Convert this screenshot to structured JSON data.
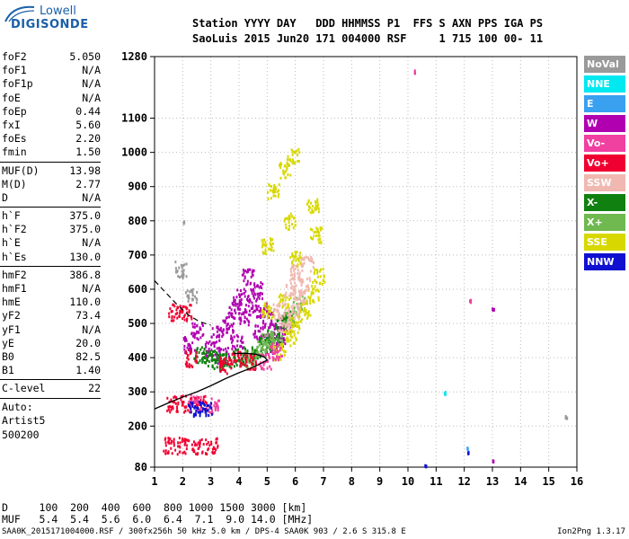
{
  "logo": {
    "line1": "Lowell",
    "line2": "DIGISONDE"
  },
  "header": {
    "columns_line": "Station YYYY DAY   DDD HHMMSS P1  FFS S AXN PPS IGA PS",
    "values_line": "SaoLuis 2015 Jun20 171 004000 RSF     1 715 100 00- 11"
  },
  "params_group1": [
    {
      "name": "foF2",
      "value": "5.050"
    },
    {
      "name": "foF1",
      "value": "N/A"
    },
    {
      "name": "foF1p",
      "value": "N/A"
    },
    {
      "name": "foE",
      "value": "N/A"
    },
    {
      "name": "foEp",
      "value": "0.44"
    },
    {
      "name": "fxI",
      "value": "5.60"
    },
    {
      "name": "foEs",
      "value": "2.20"
    },
    {
      "name": "fmin",
      "value": "1.50"
    }
  ],
  "params_group2": [
    {
      "name": "MUF(D)",
      "value": "13.98"
    },
    {
      "name": "M(D)",
      "value": "2.77"
    },
    {
      "name": "D",
      "value": "N/A"
    }
  ],
  "params_group3": [
    {
      "name": "h`F",
      "value": "375.0"
    },
    {
      "name": "h`F2",
      "value": "375.0"
    },
    {
      "name": "h`E",
      "value": "N/A"
    },
    {
      "name": "h`Es",
      "value": "130.0"
    }
  ],
  "params_group4": [
    {
      "name": "hmF2",
      "value": "386.8"
    },
    {
      "name": "hmF1",
      "value": "N/A"
    },
    {
      "name": "hmE",
      "value": "110.0"
    },
    {
      "name": "yF2",
      "value": "73.4"
    },
    {
      "name": "yF1",
      "value": "N/A"
    },
    {
      "name": "yE",
      "value": "20.0"
    },
    {
      "name": "B0",
      "value": "82.5"
    },
    {
      "name": "B1",
      "value": "1.40"
    }
  ],
  "params_group5": [
    {
      "name": "C-level",
      "value": "22"
    }
  ],
  "artist": {
    "line1": "Auto:",
    "line2": "Artist5",
    "line3": "500200"
  },
  "legend": [
    {
      "label": "NoVal",
      "color": "#9a9a9a"
    },
    {
      "label": "NNE",
      "color": "#00e8f0"
    },
    {
      "label": "E",
      "color": "#3aa0f0"
    },
    {
      "label": "W",
      "color": "#b000b0"
    },
    {
      "label": "Vo-",
      "color": "#f040a0"
    },
    {
      "label": "Vo+",
      "color": "#f00030"
    },
    {
      "label": "SSW",
      "color": "#f0b8b0"
    },
    {
      "label": "X-",
      "color": "#108010"
    },
    {
      "label": "X+",
      "color": "#70b850"
    },
    {
      "label": "SSE",
      "color": "#d8d800"
    },
    {
      "label": "NNW",
      "color": "#1010d0"
    }
  ],
  "muf_table": {
    "d_line": "D     100  200  400  600  800 1000 1500 3000 [km]",
    "muf_line": "MUF   5.4  5.4  5.6  6.0  6.4  7.1  9.0 14.0 [MHz]"
  },
  "footer": {
    "left": "SAA0K_2015171004000.RSF / 300fx256h 50 kHz 5.0 km / DPS-4 SAA0K 903 / 2.6 S 315.8 E",
    "right": "Ion2Png 1.3.17"
  },
  "chart_data": {
    "type": "scatter",
    "title": "",
    "xlabel": "",
    "ylabel": "",
    "xlim": [
      1,
      16
    ],
    "ylim": [
      80,
      1280
    ],
    "x_ticks": [
      1,
      2,
      3,
      4,
      5,
      6,
      7,
      8,
      9,
      10,
      11,
      12,
      13,
      14,
      15,
      16
    ],
    "y_ticks": [
      80,
      200,
      300,
      400,
      500,
      600,
      700,
      800,
      900,
      1000,
      1100,
      1280
    ],
    "grid": true,
    "trace_clusters": [
      {
        "series": "W",
        "color": "#b000b0",
        "points": [
          [
            2.2,
            440
          ],
          [
            2.5,
            480
          ],
          [
            3.0,
            430
          ],
          [
            3.2,
            470
          ],
          [
            3.6,
            500
          ],
          [
            3.8,
            540
          ],
          [
            4.0,
            580
          ],
          [
            4.2,
            520
          ],
          [
            4.4,
            560
          ],
          [
            4.6,
            600
          ],
          [
            4.8,
            540
          ],
          [
            5.0,
            520
          ],
          [
            5.2,
            480
          ],
          [
            5.4,
            460
          ],
          [
            5.6,
            500
          ],
          [
            4.3,
            640
          ],
          [
            3.4,
            410
          ],
          [
            3.9,
            450
          ],
          [
            4.7,
            480
          ],
          [
            5.1,
            440
          ]
        ]
      },
      {
        "series": "X-",
        "color": "#108010",
        "points": [
          [
            3.2,
            390
          ],
          [
            3.6,
            395
          ],
          [
            4.0,
            405
          ],
          [
            4.3,
            410
          ],
          [
            4.6,
            420
          ],
          [
            4.9,
            440
          ],
          [
            5.2,
            470
          ],
          [
            5.5,
            500
          ],
          [
            5.7,
            520
          ],
          [
            3.0,
            400
          ],
          [
            2.6,
            410
          ]
        ]
      },
      {
        "series": "X+",
        "color": "#70b850",
        "points": [
          [
            4.4,
            400
          ],
          [
            4.8,
            430
          ],
          [
            5.3,
            460
          ],
          [
            5.8,
            520
          ],
          [
            6.1,
            560
          ],
          [
            5.0,
            450
          ]
        ]
      },
      {
        "series": "SSE",
        "color": "#d8d800",
        "points": [
          [
            5.4,
            420
          ],
          [
            5.8,
            460
          ],
          [
            6.0,
            500
          ],
          [
            6.3,
            540
          ],
          [
            6.6,
            590
          ],
          [
            6.8,
            640
          ],
          [
            5.2,
            890
          ],
          [
            5.6,
            950
          ],
          [
            5.9,
            990
          ],
          [
            5.0,
            730
          ],
          [
            5.8,
            800
          ],
          [
            6.6,
            850
          ],
          [
            6.0,
            690
          ],
          [
            6.7,
            760
          ],
          [
            5.6,
            570
          ],
          [
            5.0,
            540
          ]
        ]
      },
      {
        "series": "SSW",
        "color": "#f0b8b0",
        "points": [
          [
            5.6,
            500
          ],
          [
            5.9,
            540
          ],
          [
            6.1,
            580
          ],
          [
            6.3,
            620
          ],
          [
            5.8,
            600
          ],
          [
            6.0,
            650
          ],
          [
            6.4,
            680
          ],
          [
            5.4,
            540
          ]
        ]
      },
      {
        "series": "Vo+",
        "color": "#f00030",
        "points": [
          [
            1.5,
            145
          ],
          [
            2.0,
            145
          ],
          [
            2.5,
            145
          ],
          [
            3.0,
            145
          ],
          [
            1.6,
            268
          ],
          [
            2.1,
            268
          ],
          [
            2.6,
            268
          ],
          [
            1.7,
            535
          ],
          [
            2.1,
            535
          ],
          [
            2.3,
            400
          ],
          [
            3.5,
            380
          ],
          [
            3.9,
            400
          ],
          [
            4.4,
            390
          ]
        ]
      },
      {
        "series": "Vo-",
        "color": "#f040a0",
        "points": [
          [
            2.4,
            270
          ],
          [
            3.1,
            265
          ],
          [
            4.9,
            390
          ],
          [
            5.3,
            420
          ],
          [
            12.2,
            570
          ],
          [
            10.2,
            1240
          ]
        ]
      },
      {
        "series": "NNW",
        "color": "#1010d0",
        "points": [
          [
            2.4,
            255
          ],
          [
            2.8,
            255
          ],
          [
            12.1,
            125
          ],
          [
            10.6,
            90
          ]
        ]
      },
      {
        "series": "NNE",
        "color": "#00e8f0",
        "points": [
          [
            11.3,
            300
          ]
        ]
      },
      {
        "series": "E",
        "color": "#3aa0f0",
        "points": [
          [
            12.1,
            140
          ]
        ]
      },
      {
        "series": "NoVal",
        "color": "#9a9a9a",
        "points": [
          [
            2.0,
            800
          ],
          [
            1.9,
            660
          ],
          [
            2.3,
            580
          ],
          [
            15.6,
            230
          ]
        ]
      },
      {
        "series": "W",
        "color": "#b000b0",
        "points": [
          [
            13.0,
            545
          ],
          [
            13.0,
            100
          ]
        ]
      }
    ],
    "profile_curve": [
      [
        1.0,
        250
      ],
      [
        1.5,
        268
      ],
      [
        2.0,
        285
      ],
      [
        2.5,
        300
      ],
      [
        3.0,
        318
      ],
      [
        3.5,
        338
      ],
      [
        4.0,
        356
      ],
      [
        4.5,
        372
      ],
      [
        4.8,
        384
      ],
      [
        5.0,
        393
      ],
      [
        4.9,
        402
      ],
      [
        4.6,
        410
      ],
      [
        4.2,
        413
      ],
      [
        3.8,
        412
      ]
    ],
    "extrapolated_curve": [
      [
        1.0,
        625
      ],
      [
        1.4,
        590
      ],
      [
        1.8,
        555
      ],
      [
        2.2,
        525
      ],
      [
        2.6,
        505
      ],
      [
        3.0,
        495
      ]
    ]
  }
}
